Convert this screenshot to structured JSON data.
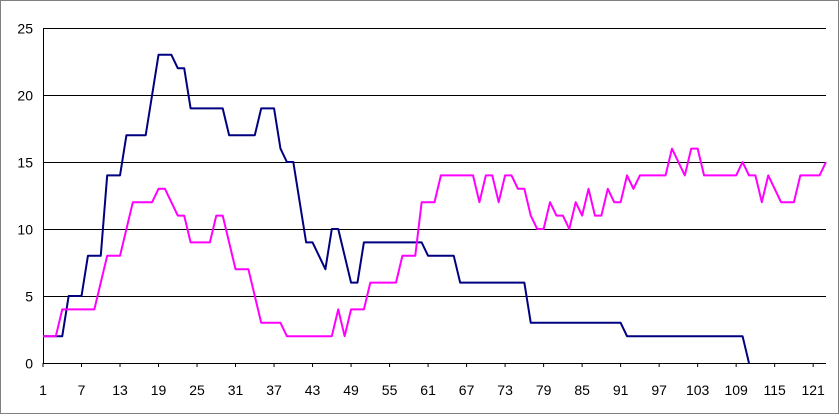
{
  "chart_data": {
    "type": "line",
    "title": "",
    "xlabel": "",
    "ylabel": "",
    "ylim": [
      0,
      25
    ],
    "yticks": [
      0,
      5,
      10,
      15,
      20,
      25
    ],
    "xlim": [
      1,
      122
    ],
    "xticks": [
      1,
      7,
      13,
      19,
      25,
      31,
      37,
      43,
      49,
      55,
      61,
      67,
      73,
      79,
      85,
      91,
      97,
      103,
      109,
      115,
      121
    ],
    "grid": "horizontal",
    "legend": "none",
    "series": [
      {
        "color": "#000080",
        "points": [
          [
            1,
            2
          ],
          [
            3,
            2
          ],
          [
            4,
            2
          ],
          [
            5,
            5
          ],
          [
            6,
            5
          ],
          [
            7,
            5
          ],
          [
            8,
            8
          ],
          [
            9,
            8
          ],
          [
            10,
            8
          ],
          [
            11,
            14
          ],
          [
            12,
            14
          ],
          [
            13,
            14
          ],
          [
            14,
            17
          ],
          [
            15,
            17
          ],
          [
            16,
            17
          ],
          [
            17,
            17
          ],
          [
            18,
            20
          ],
          [
            19,
            23
          ],
          [
            20,
            23
          ],
          [
            21,
            23
          ],
          [
            22,
            22
          ],
          [
            23,
            22
          ],
          [
            24,
            19
          ],
          [
            25,
            19
          ],
          [
            26,
            19
          ],
          [
            27,
            19
          ],
          [
            28,
            19
          ],
          [
            29,
            19
          ],
          [
            30,
            17
          ],
          [
            31,
            17
          ],
          [
            32,
            17
          ],
          [
            33,
            17
          ],
          [
            34,
            17
          ],
          [
            35,
            19
          ],
          [
            36,
            19
          ],
          [
            37,
            19
          ],
          [
            38,
            16
          ],
          [
            39,
            15
          ],
          [
            40,
            15
          ],
          [
            41,
            12
          ],
          [
            42,
            9
          ],
          [
            43,
            9
          ],
          [
            44,
            8
          ],
          [
            45,
            7
          ],
          [
            46,
            10
          ],
          [
            47,
            10
          ],
          [
            48,
            8
          ],
          [
            49,
            6
          ],
          [
            50,
            6
          ],
          [
            51,
            9
          ],
          [
            52,
            9
          ],
          [
            53,
            9
          ],
          [
            54,
            9
          ],
          [
            55,
            9
          ],
          [
            56,
            9
          ],
          [
            57,
            9
          ],
          [
            58,
            9
          ],
          [
            59,
            9
          ],
          [
            60,
            9
          ],
          [
            61,
            8
          ],
          [
            62,
            8
          ],
          [
            63,
            8
          ],
          [
            64,
            8
          ],
          [
            65,
            8
          ],
          [
            66,
            6
          ],
          [
            67,
            6
          ],
          [
            68,
            6
          ],
          [
            69,
            6
          ],
          [
            70,
            6
          ],
          [
            71,
            6
          ],
          [
            72,
            6
          ],
          [
            73,
            6
          ],
          [
            74,
            6
          ],
          [
            75,
            6
          ],
          [
            76,
            6
          ],
          [
            77,
            3
          ],
          [
            78,
            3
          ],
          [
            79,
            3
          ],
          [
            80,
            3
          ],
          [
            81,
            3
          ],
          [
            82,
            3
          ],
          [
            83,
            3
          ],
          [
            84,
            3
          ],
          [
            85,
            3
          ],
          [
            86,
            3
          ],
          [
            87,
            3
          ],
          [
            88,
            3
          ],
          [
            89,
            3
          ],
          [
            90,
            3
          ],
          [
            91,
            3
          ],
          [
            92,
            2
          ],
          [
            93,
            2
          ],
          [
            94,
            2
          ],
          [
            95,
            2
          ],
          [
            96,
            2
          ],
          [
            97,
            2
          ],
          [
            98,
            2
          ],
          [
            99,
            2
          ],
          [
            100,
            2
          ],
          [
            101,
            2
          ],
          [
            102,
            2
          ],
          [
            103,
            2
          ],
          [
            104,
            2
          ],
          [
            105,
            2
          ],
          [
            106,
            2
          ],
          [
            107,
            2
          ],
          [
            108,
            2
          ],
          [
            109,
            2
          ],
          [
            110,
            2
          ],
          [
            111,
            0
          ]
        ]
      },
      {
        "color": "#ff00ff",
        "points": [
          [
            1,
            2
          ],
          [
            2,
            2
          ],
          [
            3,
            2
          ],
          [
            4,
            4
          ],
          [
            5,
            4
          ],
          [
            6,
            4
          ],
          [
            7,
            4
          ],
          [
            8,
            4
          ],
          [
            9,
            4
          ],
          [
            10,
            6
          ],
          [
            11,
            8
          ],
          [
            12,
            8
          ],
          [
            13,
            8
          ],
          [
            14,
            10
          ],
          [
            15,
            12
          ],
          [
            16,
            12
          ],
          [
            17,
            12
          ],
          [
            18,
            12
          ],
          [
            19,
            13
          ],
          [
            20,
            13
          ],
          [
            21,
            12
          ],
          [
            22,
            11
          ],
          [
            23,
            11
          ],
          [
            24,
            9
          ],
          [
            25,
            9
          ],
          [
            26,
            9
          ],
          [
            27,
            9
          ],
          [
            28,
            11
          ],
          [
            29,
            11
          ],
          [
            30,
            9
          ],
          [
            31,
            7
          ],
          [
            32,
            7
          ],
          [
            33,
            7
          ],
          [
            34,
            5
          ],
          [
            35,
            3
          ],
          [
            36,
            3
          ],
          [
            37,
            3
          ],
          [
            38,
            3
          ],
          [
            39,
            2
          ],
          [
            40,
            2
          ],
          [
            41,
            2
          ],
          [
            42,
            2
          ],
          [
            43,
            2
          ],
          [
            44,
            2
          ],
          [
            45,
            2
          ],
          [
            46,
            2
          ],
          [
            47,
            4
          ],
          [
            48,
            2
          ],
          [
            49,
            4
          ],
          [
            50,
            4
          ],
          [
            51,
            4
          ],
          [
            52,
            6
          ],
          [
            53,
            6
          ],
          [
            54,
            6
          ],
          [
            55,
            6
          ],
          [
            56,
            6
          ],
          [
            57,
            8
          ],
          [
            58,
            8
          ],
          [
            59,
            8
          ],
          [
            60,
            12
          ],
          [
            61,
            12
          ],
          [
            62,
            12
          ],
          [
            63,
            14
          ],
          [
            64,
            14
          ],
          [
            65,
            14
          ],
          [
            66,
            14
          ],
          [
            67,
            14
          ],
          [
            68,
            14
          ],
          [
            69,
            12
          ],
          [
            70,
            14
          ],
          [
            71,
            14
          ],
          [
            72,
            12
          ],
          [
            73,
            14
          ],
          [
            74,
            14
          ],
          [
            75,
            13
          ],
          [
            76,
            13
          ],
          [
            77,
            11
          ],
          [
            78,
            10
          ],
          [
            79,
            10
          ],
          [
            80,
            12
          ],
          [
            81,
            11
          ],
          [
            82,
            11
          ],
          [
            83,
            10
          ],
          [
            84,
            12
          ],
          [
            85,
            11
          ],
          [
            86,
            13
          ],
          [
            87,
            11
          ],
          [
            88,
            11
          ],
          [
            89,
            13
          ],
          [
            90,
            12
          ],
          [
            91,
            12
          ],
          [
            92,
            14
          ],
          [
            93,
            13
          ],
          [
            94,
            14
          ],
          [
            95,
            14
          ],
          [
            96,
            14
          ],
          [
            97,
            14
          ],
          [
            98,
            14
          ],
          [
            99,
            16
          ],
          [
            100,
            15
          ],
          [
            101,
            14
          ],
          [
            102,
            16
          ],
          [
            103,
            16
          ],
          [
            104,
            14
          ],
          [
            105,
            14
          ],
          [
            106,
            14
          ],
          [
            107,
            14
          ],
          [
            108,
            14
          ],
          [
            109,
            14
          ],
          [
            110,
            15
          ],
          [
            111,
            14
          ],
          [
            112,
            14
          ],
          [
            113,
            12
          ],
          [
            114,
            14
          ],
          [
            115,
            13
          ],
          [
            116,
            12
          ],
          [
            117,
            12
          ],
          [
            118,
            12
          ],
          [
            119,
            14
          ],
          [
            120,
            14
          ],
          [
            121,
            14
          ],
          [
            122,
            14
          ],
          [
            123,
            15
          ]
        ]
      }
    ]
  }
}
